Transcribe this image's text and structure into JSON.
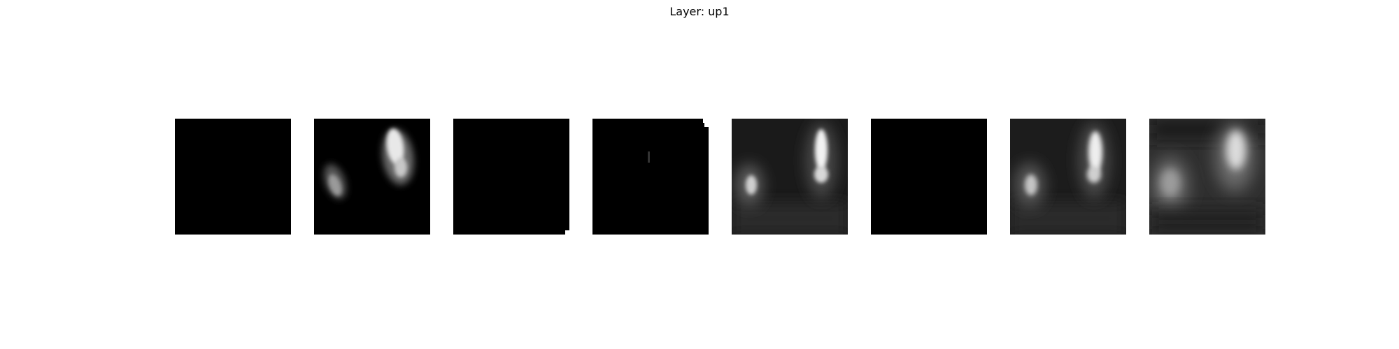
{
  "figure": {
    "title": "Layer: up1"
  },
  "panels": [
    {
      "id": 1,
      "pattern": "blank"
    },
    {
      "id": 2,
      "pattern": "two-blobs-sharp"
    },
    {
      "id": 3,
      "pattern": "blank-edge-notch"
    },
    {
      "id": 4,
      "pattern": "blank-small-dot"
    },
    {
      "id": 5,
      "pattern": "two-blobs-glow"
    },
    {
      "id": 6,
      "pattern": "blank"
    },
    {
      "id": 7,
      "pattern": "two-blobs-glow"
    },
    {
      "id": 8,
      "pattern": "two-blobs-diffuse"
    }
  ],
  "colors": {
    "background": "#ffffff",
    "panel": "#000000",
    "activation": "#ffffff"
  }
}
